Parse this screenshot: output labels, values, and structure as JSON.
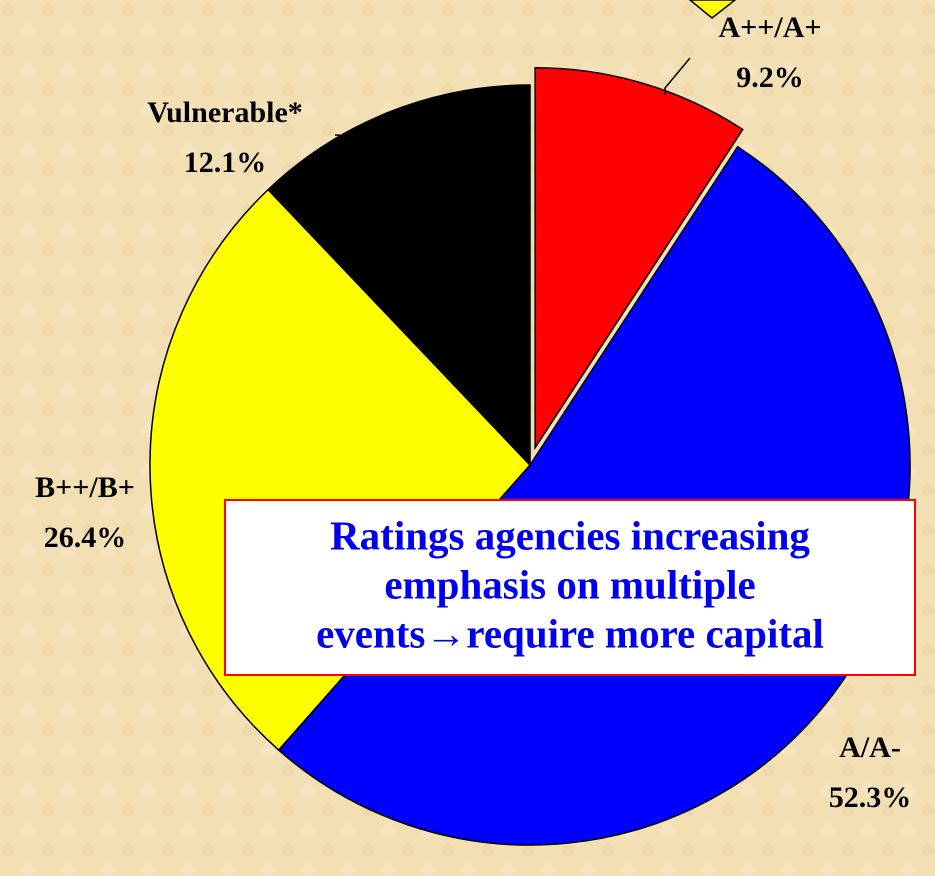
{
  "chart_data": {
    "type": "pie",
    "categories": [
      "A++/A+",
      "A/A-",
      "B++/B+",
      "Vulnerable*"
    ],
    "values": [
      9.2,
      52.3,
      26.4,
      12.1
    ],
    "value_labels": [
      "9.2%",
      "52.3%",
      "26.4%",
      "12.1%"
    ],
    "colors": [
      "#ff0000",
      "#0000ff",
      "#ffff00",
      "#000000"
    ],
    "exploded": [
      true,
      false,
      false,
      false
    ],
    "annotation": [
      "Ratings agencies increasing",
      "emphasis on multiple",
      "events→require more capital"
    ]
  }
}
